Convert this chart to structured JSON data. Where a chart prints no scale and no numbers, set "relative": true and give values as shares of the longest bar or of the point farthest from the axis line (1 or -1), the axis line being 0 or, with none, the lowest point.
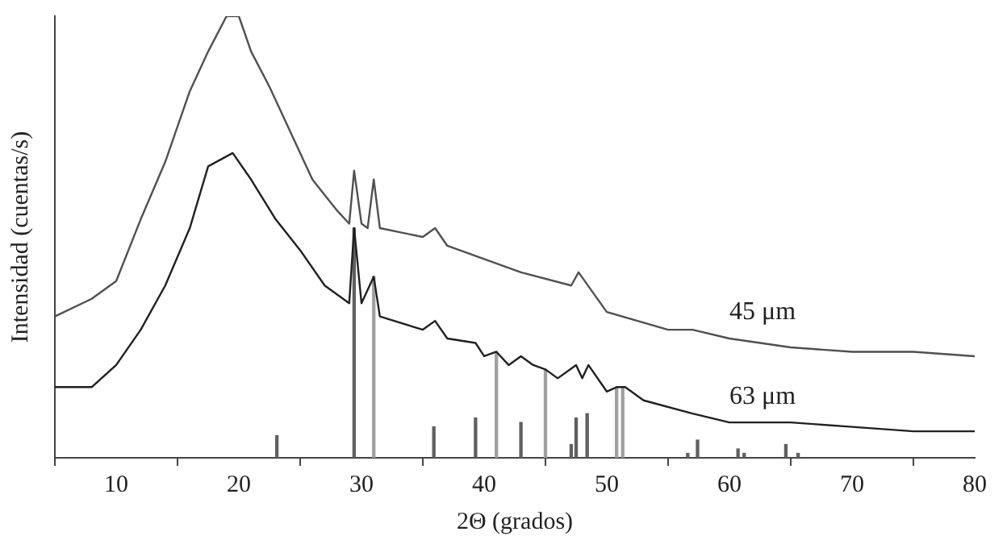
{
  "chart_data": {
    "type": "line",
    "relative": true,
    "xlabel": "2Θ (grados)",
    "ylabel": "Intensidad (cuentas/s)",
    "xlim": [
      5,
      80
    ],
    "xticks": [
      10,
      20,
      30,
      40,
      50,
      60,
      70,
      80
    ],
    "grid": false,
    "legend": false,
    "marker": "none",
    "series": [
      {
        "name": "45 μm",
        "color": "#505050",
        "x": [
          5,
          8,
          10,
          12,
          14,
          16,
          17.5,
          19,
          20,
          21,
          22.5,
          24,
          26,
          28,
          29,
          29.4,
          30,
          30.5,
          31,
          31.5,
          35,
          36,
          37,
          40,
          43,
          47.1,
          47.7,
          50,
          55,
          57,
          60,
          65,
          70,
          75,
          80
        ],
        "values": [
          0.32,
          0.36,
          0.4,
          0.54,
          0.67,
          0.83,
          0.92,
          1,
          1,
          0.92,
          0.84,
          0.75,
          0.63,
          0.56,
          0.53,
          0.65,
          0.53,
          0.52,
          0.63,
          0.52,
          0.5,
          0.52,
          0.48,
          0.45,
          0.42,
          0.39,
          0.42,
          0.33,
          0.29,
          0.29,
          0.27,
          0.25,
          0.24,
          0.24,
          0.23
        ]
      },
      {
        "name": "63 μm",
        "color": "#202020",
        "x": [
          5,
          8,
          10,
          12,
          14,
          16,
          17.5,
          19.5,
          21,
          23,
          25,
          27,
          29,
          29.4,
          30,
          31,
          31.5,
          35,
          36,
          37,
          39.3,
          40,
          41,
          42,
          43,
          44,
          45,
          46,
          47.5,
          48,
          48.5,
          50,
          50.8,
          51.5,
          53,
          57,
          60,
          65,
          70,
          75,
          80
        ],
        "values": [
          0.16,
          0.16,
          0.21,
          0.29,
          0.39,
          0.52,
          0.66,
          0.69,
          0.63,
          0.54,
          0.47,
          0.39,
          0.35,
          0.52,
          0.35,
          0.41,
          0.32,
          0.29,
          0.31,
          0.27,
          0.26,
          0.23,
          0.24,
          0.21,
          0.23,
          0.21,
          0.2,
          0.18,
          0.21,
          0.18,
          0.21,
          0.15,
          0.16,
          0.16,
          0.13,
          0.1,
          0.08,
          0.08,
          0.07,
          0.06,
          0.06
        ]
      },
      {
        "type": "bar",
        "color": "#606060",
        "x": [
          23.1,
          29.4,
          35.9,
          39.3,
          43,
          47.1,
          47.5,
          48.4,
          56.6,
          57.4,
          60.7,
          61.2,
          64.6,
          65.6
        ],
        "values": [
          0.05,
          0.52,
          0.07,
          0.09,
          0.08,
          0.03,
          0.09,
          0.1,
          0.01,
          0.04,
          0.02,
          0.01,
          0.03,
          0.01
        ]
      },
      {
        "type": "bar",
        "color": "#a0a0a0",
        "x": [
          31,
          41,
          45,
          50.8,
          51.3
        ],
        "values": [
          0.41,
          0.24,
          0.2,
          0.16,
          0.16
        ]
      }
    ]
  }
}
